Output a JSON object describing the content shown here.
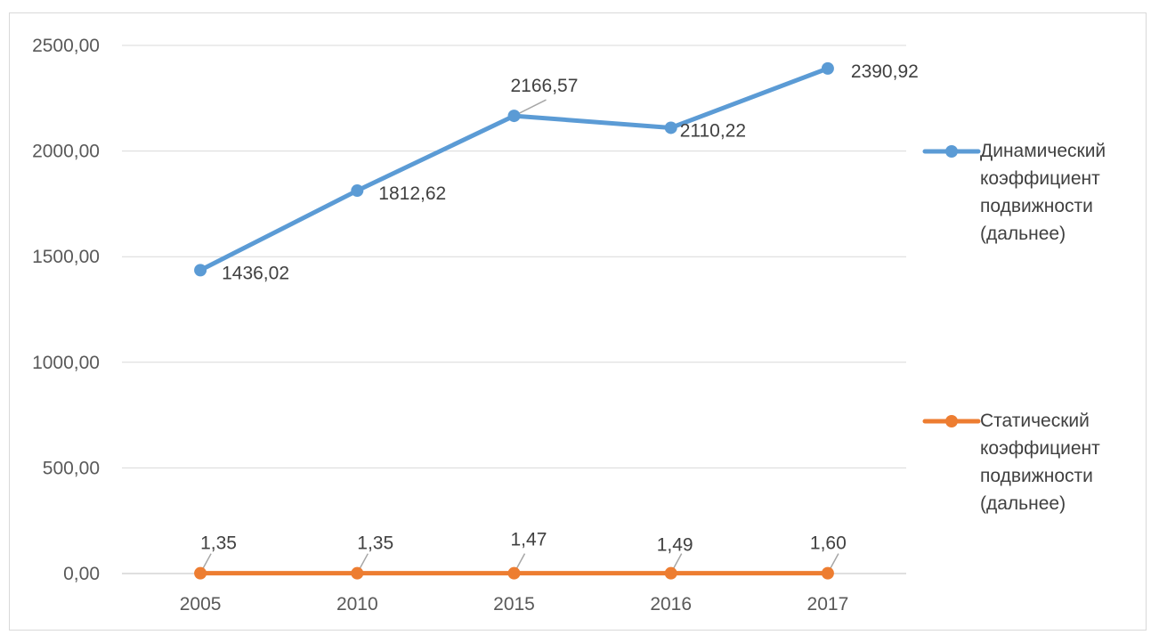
{
  "chart_data": {
    "type": "line",
    "categories": [
      "2005",
      "2010",
      "2015",
      "2016",
      "2017"
    ],
    "y_ticks": [
      "0,00",
      "500,00",
      "1000,00",
      "1500,00",
      "2000,00",
      "2500,00"
    ],
    "ylim": [
      0,
      2500
    ],
    "grid": true,
    "legend_position": "right",
    "series": [
      {
        "name": "Динамический коэффициент подвижности (дальнее)",
        "color": "#5b9bd5",
        "values": [
          1436.02,
          1812.62,
          2166.57,
          2110.22,
          2390.92
        ],
        "labels": [
          "1436,02",
          "1812,62",
          "2166,57",
          "2110,22",
          "2390,92"
        ]
      },
      {
        "name": "Статический коэффициент подвижности (дальнее)",
        "color": "#ed7d31",
        "values": [
          1.35,
          1.35,
          1.47,
          1.49,
          1.6
        ],
        "labels": [
          "1,35",
          "1,35",
          "1,47",
          "1,49",
          "1,60"
        ]
      }
    ]
  }
}
